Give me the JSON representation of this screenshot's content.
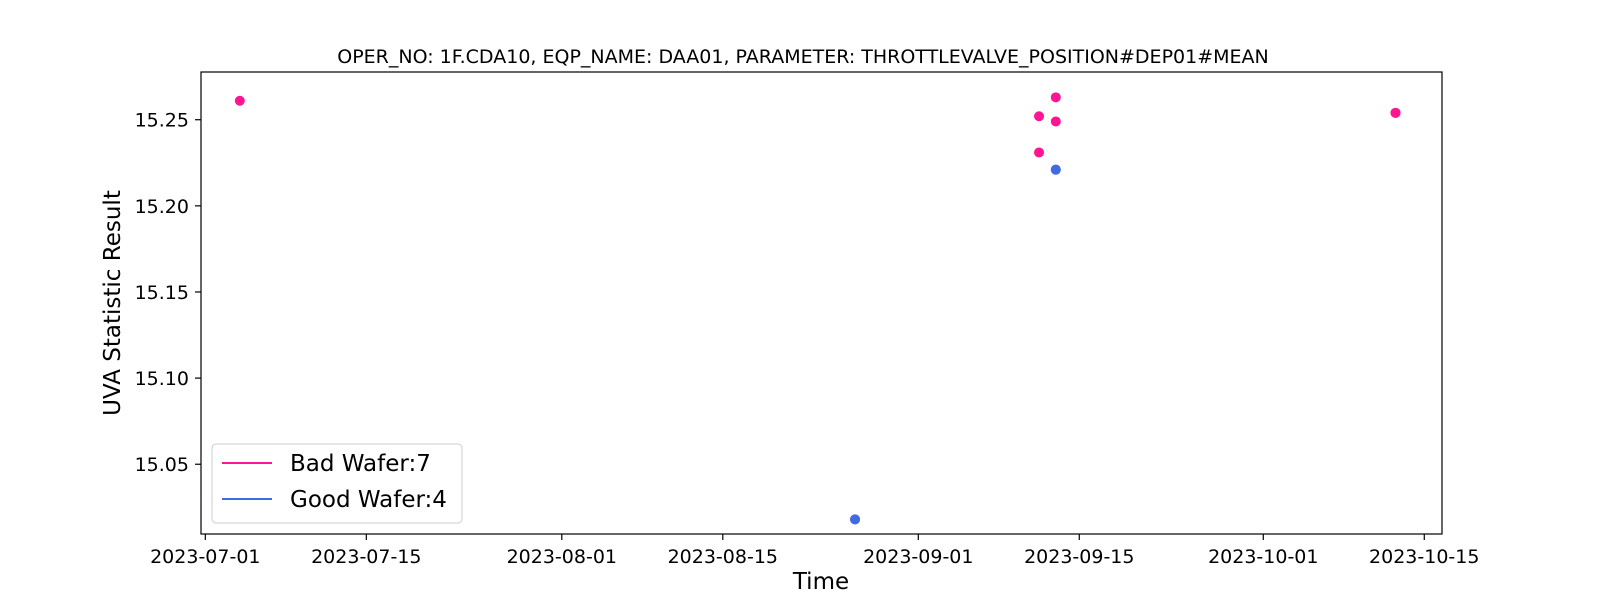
{
  "chart_data": {
    "type": "scatter",
    "title": "OPER_NO: 1F.CDA10,  EQP_NAME: DAA01,  PARAMETER: THROTTLEVALVE_POSITION#DEP01#MEAN",
    "xlabel": "Time",
    "ylabel": "UVA Statistic Result",
    "x_type": "date",
    "xlim": [
      "2023-06-30T15:00",
      "2023-10-16T13:00"
    ],
    "ylim": [
      15.0095,
      15.2777
    ],
    "x_ticks": [
      "2023-07-01",
      "2023-07-15",
      "2023-08-01",
      "2023-08-15",
      "2023-09-01",
      "2023-09-15",
      "2023-10-01",
      "2023-10-15"
    ],
    "y_ticks": [
      15.05,
      15.1,
      15.15,
      15.2,
      15.25
    ],
    "y_tick_labels": [
      "15.05",
      "15.10",
      "15.15",
      "15.20",
      "15.25"
    ],
    "grid": false,
    "legend_position": "lower-left",
    "series": [
      {
        "name": "Bad Wafer:7",
        "color": "#ff1493",
        "points": [
          {
            "x": "2023-07-04T00:00",
            "y": 15.261
          },
          {
            "x": "2023-09-11T12:00",
            "y": 15.252
          },
          {
            "x": "2023-09-11T12:00",
            "y": 15.231
          },
          {
            "x": "2023-09-12T23:00",
            "y": 15.263
          },
          {
            "x": "2023-09-12T23:00",
            "y": 15.249
          },
          {
            "x": "2023-10-12T12:00",
            "y": 15.254
          },
          {
            "x": "2023-10-12T12:00",
            "y": 15.254
          }
        ]
      },
      {
        "name": "Good Wafer:4",
        "color": "#4169e1",
        "points": [
          {
            "x": "2023-08-26T12:00",
            "y": 15.018
          },
          {
            "x": "2023-08-26T12:00",
            "y": 15.018
          },
          {
            "x": "2023-09-12T23:00",
            "y": 15.221
          },
          {
            "x": "2023-09-12T23:00",
            "y": 15.221
          }
        ]
      }
    ]
  }
}
